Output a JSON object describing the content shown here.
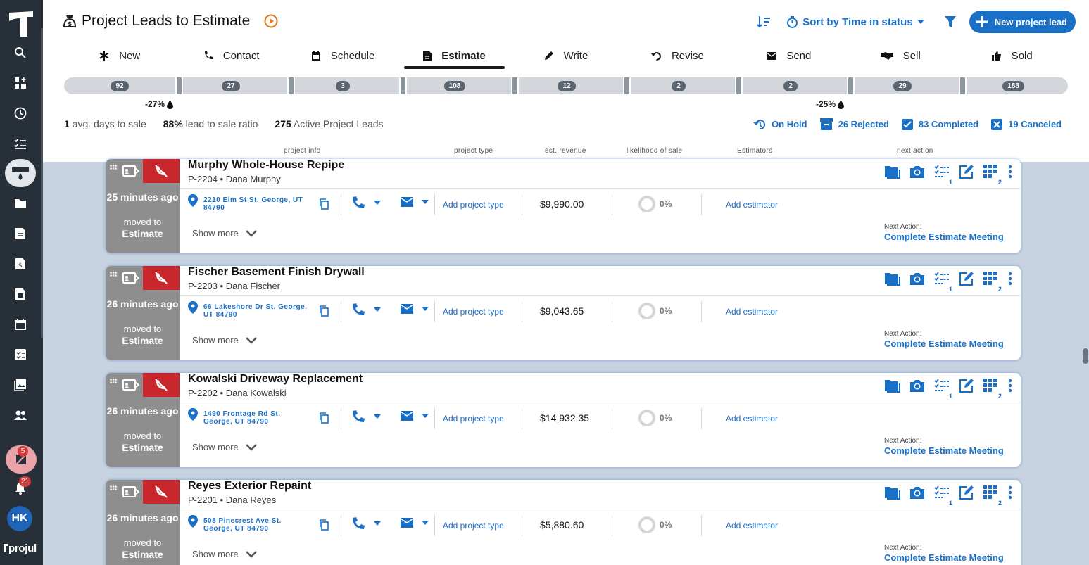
{
  "app": {
    "brand": "projul",
    "notifications_alert_count": "5",
    "notifications_count": "21",
    "user_initials": "HK"
  },
  "sidebar": {
    "items": [
      {
        "icon": "search-icon"
      },
      {
        "icon": "dashboard-add-icon"
      },
      {
        "icon": "clock-icon"
      },
      {
        "icon": "checklist-icon"
      },
      {
        "icon": "project-leads-icon",
        "active": true
      },
      {
        "icon": "folder-icon"
      },
      {
        "icon": "estimate-doc-icon"
      },
      {
        "icon": "invoice-doc-icon"
      },
      {
        "icon": "calculator-doc-icon"
      },
      {
        "icon": "calendar-icon"
      },
      {
        "icon": "task-icon"
      },
      {
        "icon": "photos-icon"
      },
      {
        "icon": "people-icon"
      }
    ]
  },
  "header": {
    "title": "Project Leads to Estimate",
    "sort_label": "Sort by Time in status",
    "new_lead_label": "New project lead"
  },
  "tabs": [
    {
      "label": "New",
      "icon": "asterisk-icon"
    },
    {
      "label": "Contact",
      "icon": "phone-icon"
    },
    {
      "label": "Schedule",
      "icon": "calendar-icon"
    },
    {
      "label": "Estimate",
      "icon": "document-icon",
      "active": true
    },
    {
      "label": "Write",
      "icon": "pencil-icon"
    },
    {
      "label": "Revise",
      "icon": "undo-icon"
    },
    {
      "label": "Send",
      "icon": "envelope-icon"
    },
    {
      "label": "Sell",
      "icon": "handshake-icon"
    },
    {
      "label": "Sold",
      "icon": "thumbs-up-icon"
    }
  ],
  "pipeline": {
    "counts": [
      "92",
      "27",
      "3",
      "108",
      "12",
      "2",
      "2",
      "29",
      "188"
    ],
    "conversion_left": "-27%",
    "conversion_right": "-25%"
  },
  "stats": {
    "avg_days_value": "1",
    "avg_days_label": "avg. days to sale",
    "ratio_value": "88%",
    "ratio_label": "lead to sale ratio",
    "active_value": "275",
    "active_label": "Active Project Leads"
  },
  "status_links": {
    "on_hold": "On Hold",
    "rejected": "26 Rejected",
    "completed": "83 Completed",
    "canceled": "19 Canceled"
  },
  "columns": {
    "project_info": "project info",
    "project_type": "project type",
    "est_revenue": "est. revenue",
    "likelihood": "likelihood of sale",
    "estimators": "Estimators",
    "next_action": "next action"
  },
  "card_common": {
    "moved_to": "moved to",
    "stage": "Estimate",
    "add_project_type": "Add project type",
    "add_estimator": "Add estimator",
    "show_more": "Show more",
    "next_action_label": "Next Action:",
    "next_action_value": "Complete Estimate Meeting",
    "tasks_count": "1",
    "apps_count": "2"
  },
  "leads": [
    {
      "title": "Murphy Whole-House Repipe",
      "id": "P-2204",
      "client": "Dana Murphy",
      "time": "25 minutes ago",
      "address": "2210 Elm St St. George, UT 84790",
      "revenue": "$9,990.00",
      "likelihood": "0%"
    },
    {
      "title": "Fischer Basement Finish Drywall",
      "id": "P-2203",
      "client": "Dana Fischer",
      "time": "26 minutes ago",
      "address": "66 Lakeshore Dr St. George, UT 84790",
      "revenue": "$9,043.65",
      "likelihood": "0%"
    },
    {
      "title": "Kowalski Driveway Replacement",
      "id": "P-2202",
      "client": "Dana Kowalski",
      "time": "26 minutes ago",
      "address": "1490 Frontage Rd St. George, UT 84790",
      "revenue": "$14,932.35",
      "likelihood": "0%"
    },
    {
      "title": "Reyes Exterior Repaint",
      "id": "P-2201",
      "client": "Dana Reyes",
      "time": "26 minutes ago",
      "address": "508 Pinecrest Ave St. George, UT 84790",
      "revenue": "$5,880.60",
      "likelihood": "0%"
    }
  ],
  "colors": {
    "accent": "#1a6fc7",
    "sidebar": "#273038",
    "alert": "#c7272d"
  }
}
